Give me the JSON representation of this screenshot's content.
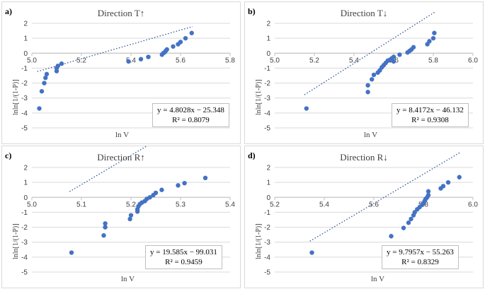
{
  "chart_data": [
    {
      "type": "scatter",
      "panel_label": "a)",
      "title": "Direction T↑",
      "xlabel": "ln V",
      "ylabel": "lnln[1/(1-P)]",
      "xlim": [
        5.0,
        5.8
      ],
      "ylim": [
        -5,
        2
      ],
      "xticks": [
        "5.0",
        "5.2",
        "5.4",
        "5.6",
        "5.8"
      ],
      "yticks": [
        "2",
        "1",
        "0",
        "-1",
        "-2",
        "-3",
        "-4",
        "-5"
      ],
      "trendline": {
        "slope": 4.8028,
        "intercept": -25.348
      },
      "equation": "y = 4.8028x − 25.348",
      "r2": "R² = 0.8079",
      "x": [
        5.03,
        5.04,
        5.05,
        5.055,
        5.06,
        5.1,
        5.1,
        5.105,
        5.12,
        5.39,
        5.44,
        5.47,
        5.525,
        5.53,
        5.535,
        5.54,
        5.545,
        5.57,
        5.59,
        5.6,
        5.62,
        5.645
      ],
      "y": [
        -3.7,
        -2.55,
        -2.0,
        -1.65,
        -1.4,
        -1.2,
        -1.0,
        -0.85,
        -0.7,
        -0.55,
        -0.4,
        -0.25,
        -0.1,
        0.0,
        0.05,
        0.15,
        0.25,
        0.45,
        0.6,
        0.75,
        1.0,
        1.35
      ]
    },
    {
      "type": "scatter",
      "panel_label": "b)",
      "title": "Direction T↓",
      "xlabel": "ln V",
      "ylabel": "lnln[1/(1-P)]",
      "xlim": [
        5.0,
        6.0
      ],
      "ylim": [
        -5,
        2
      ],
      "xticks": [
        "5.0",
        "5.2",
        "5.4",
        "5.6",
        "5.8",
        "6.0"
      ],
      "yticks": [
        "2",
        "1",
        "0",
        "-1",
        "-2",
        "-3",
        "-4",
        "-5"
      ],
      "trendline": {
        "slope": 8.4172,
        "intercept": -46.132
      },
      "equation": "y = 8.4172x − 46.132",
      "r2": "R² = 0.9308",
      "x": [
        5.16,
        5.47,
        5.47,
        5.49,
        5.5,
        5.52,
        5.53,
        5.54,
        5.55,
        5.56,
        5.57,
        5.58,
        5.59,
        5.6,
        5.6,
        5.63,
        5.67,
        5.68,
        5.69,
        5.7,
        5.77,
        5.78,
        5.8,
        5.805
      ],
      "y": [
        -3.7,
        -2.6,
        -2.15,
        -1.75,
        -1.45,
        -1.3,
        -1.15,
        -0.95,
        -0.8,
        -0.65,
        -0.5,
        -0.45,
        -0.35,
        -0.25,
        -0.55,
        -0.1,
        0.05,
        0.15,
        0.25,
        0.4,
        0.6,
        0.8,
        1.0,
        1.35
      ]
    },
    {
      "type": "scatter",
      "panel_label": "c)",
      "title": "Direction R↑",
      "xlabel": "ln V",
      "ylabel": "lnln[1/(1-P)]",
      "xlim": [
        5.0,
        5.4
      ],
      "ylim": [
        -5,
        2
      ],
      "xticks": [
        "5.0",
        "5.1",
        "5.2",
        "5.3",
        "5.4"
      ],
      "yticks": [
        "2",
        "1",
        "0",
        "-1",
        "-2",
        "-3",
        "-4",
        "-5"
      ],
      "trendline": {
        "slope": 19.585,
        "intercept": -99.031
      },
      "equation": "y = 19.585x − 99.031",
      "r2": "R² = 0.9459",
      "x": [
        5.08,
        5.145,
        5.148,
        5.148,
        5.198,
        5.2,
        5.213,
        5.213,
        5.215,
        5.218,
        5.222,
        5.228,
        5.232,
        5.238,
        5.245,
        5.25,
        5.262,
        5.295,
        5.308,
        5.35
      ],
      "y": [
        -3.7,
        -2.55,
        -2.0,
        -1.75,
        -1.45,
        -1.2,
        -0.95,
        -0.8,
        -0.6,
        -0.45,
        -0.35,
        -0.25,
        -0.1,
        0.0,
        0.15,
        0.3,
        0.5,
        0.8,
        0.95,
        1.3
      ]
    },
    {
      "type": "scatter",
      "panel_label": "d)",
      "title": "Direction R↓",
      "xlabel": "ln V",
      "ylabel": "lnln[1/(1-P)]",
      "xlim": [
        5.2,
        6.0
      ],
      "ylim": [
        -5,
        2
      ],
      "xticks": [
        "5.2",
        "5.4",
        "5.6",
        "5.8",
        "6.0"
      ],
      "yticks": [
        "2",
        "1",
        "0",
        "-1",
        "-2",
        "-3",
        "-4",
        "-5"
      ],
      "trendline": {
        "slope": 9.7957,
        "intercept": -55.263
      },
      "equation": "y = 9.7957x − 55.263",
      "r2": "R² = 0.8329",
      "x": [
        5.35,
        5.67,
        5.72,
        5.74,
        5.75,
        5.76,
        5.765,
        5.775,
        5.785,
        5.795,
        5.8,
        5.805,
        5.81,
        5.815,
        5.82,
        5.82,
        5.87,
        5.88,
        5.9,
        5.945
      ],
      "y": [
        -3.7,
        -2.6,
        -2.05,
        -1.7,
        -1.45,
        -1.2,
        -1.0,
        -0.8,
        -0.65,
        -0.5,
        -0.4,
        -0.25,
        -0.1,
        0.0,
        0.15,
        0.4,
        0.6,
        0.75,
        1.0,
        1.35
      ]
    }
  ]
}
